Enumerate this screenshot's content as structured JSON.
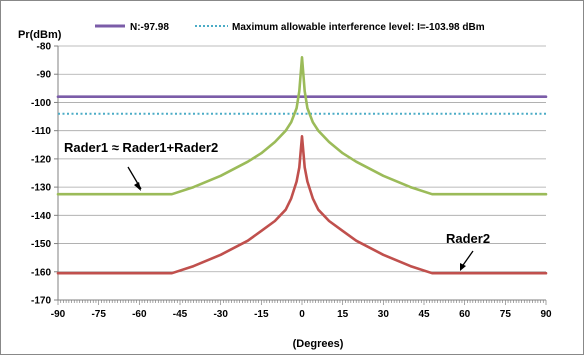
{
  "chart_data": {
    "type": "line",
    "ylabel": "Pr(dBm)",
    "xlabel": "(Degrees)",
    "xlim": [
      -90,
      90
    ],
    "ylim": [
      -170,
      -80
    ],
    "x_ticks": [
      -90,
      -75,
      -60,
      -45,
      -30,
      -15,
      0,
      15,
      30,
      45,
      60,
      75,
      90
    ],
    "y_ticks": [
      -80,
      -90,
      -100,
      -110,
      -120,
      -130,
      -140,
      -150,
      -160,
      -170
    ],
    "grid": "horizontal",
    "legend_position": "top",
    "series": [
      {
        "name": "N:-97.98",
        "color": "#7B5CA8",
        "style": "solid",
        "x": [
          -90,
          90
        ],
        "y": [
          -97.98,
          -97.98
        ]
      },
      {
        "name": "Maximum allowable interference level: I=-103.98 dBm",
        "color": "#4BACC6",
        "style": "dotted",
        "x": [
          -90,
          90
        ],
        "y": [
          -103.98,
          -103.98
        ]
      },
      {
        "name": "",
        "color": "#9BBB59",
        "style": "solid",
        "x": [
          -90,
          -48,
          -40,
          -30,
          -20,
          -15,
          -10,
          -6,
          -4,
          -2,
          -1,
          0,
          1,
          2,
          4,
          6,
          10,
          15,
          20,
          30,
          40,
          48,
          90
        ],
        "y": [
          -132.5,
          -132.5,
          -130,
          -126,
          -121,
          -118,
          -114,
          -110,
          -107,
          -102,
          -96,
          -84,
          -96,
          -102,
          -107,
          -110,
          -114,
          -118,
          -121,
          -126,
          -130,
          -132.5,
          -132.5
        ]
      },
      {
        "name": "",
        "color": "#C0504D",
        "style": "solid",
        "x": [
          -90,
          -48,
          -40,
          -30,
          -20,
          -15,
          -10,
          -6,
          -4,
          -2,
          -1,
          0,
          1,
          2,
          4,
          6,
          10,
          15,
          20,
          30,
          40,
          48,
          90
        ],
        "y": [
          -160.5,
          -160.5,
          -158,
          -154,
          -149,
          -145.5,
          -142,
          -138,
          -134,
          -128,
          -123,
          -112,
          -123,
          -128,
          -134,
          -138,
          -142,
          -145.5,
          -149,
          -154,
          -158,
          -160.5,
          -160.5
        ]
      }
    ],
    "annotations": [
      {
        "text": "Rader1 ≈ Rader1+Rader2"
      },
      {
        "text": "Rader2"
      }
    ]
  }
}
